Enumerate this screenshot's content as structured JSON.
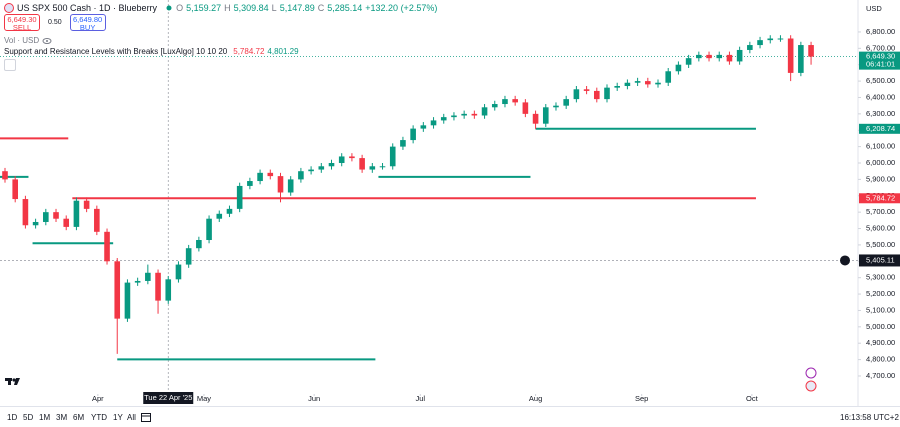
{
  "chart_data": {
    "type": "candlestick",
    "title": "US SPX 500 Cash · 1D · Blueberry",
    "header_labels": [
      "O",
      "H",
      "L",
      "C"
    ],
    "header_values": [
      "5,159.27",
      "5,309.84",
      "5,147.89",
      "5,285.14"
    ],
    "change": "+132.20 (+2.57%)",
    "sell_price": "6,649.30",
    "sell_label": "SELL",
    "spread": "0.50",
    "buy_price": "6,649.80",
    "buy_label": "BUY",
    "volume_label": "Vol · USD",
    "indicator": {
      "name": "Support and Resistance Levels with Breaks [LuxAlgo] 10 10 20",
      "values": [
        "5,784.72",
        "4,801.29"
      ]
    },
    "currency": "USD",
    "up_color": "#089981",
    "down_color": "#f23645",
    "open": [
      5950,
      5900,
      5780,
      5620,
      5640,
      5700,
      5660,
      5610,
      5770,
      5720,
      5580,
      5400,
      5050,
      5270,
      5280,
      5330,
      5160,
      5290,
      5380,
      5480,
      5530,
      5660,
      5690,
      5720,
      5860,
      5890,
      5940,
      5920,
      5820,
      5900,
      5950,
      5960,
      5980,
      6000,
      6040,
      6030,
      5960,
      5980,
      5980,
      6100,
      6140,
      6210,
      6230,
      6260,
      6280,
      6290,
      6300,
      6290,
      6340,
      6360,
      6390,
      6370,
      6300,
      6240,
      6340,
      6350,
      6390,
      6450,
      6440,
      6390,
      6460,
      6470,
      6490,
      6500,
      6480,
      6490,
      6560,
      6600,
      6640,
      6660,
      6640,
      6660,
      6620,
      6690,
      6720,
      6750,
      6760,
      6760,
      6550,
      6720
    ],
    "high": [
      5970,
      5920,
      5800,
      5660,
      5720,
      5720,
      5680,
      5790,
      5790,
      5740,
      5600,
      5420,
      5290,
      5300,
      5380,
      5350,
      5310,
      5400,
      5500,
      5550,
      5680,
      5710,
      5740,
      5880,
      5910,
      5960,
      5960,
      5940,
      5920,
      5970,
      5980,
      6000,
      6020,
      6060,
      6060,
      6050,
      6000,
      6000,
      6120,
      6160,
      6230,
      6250,
      6280,
      6300,
      6310,
      6320,
      6320,
      6360,
      6380,
      6410,
      6410,
      6390,
      6320,
      6360,
      6370,
      6410,
      6470,
      6470,
      6460,
      6480,
      6490,
      6510,
      6520,
      6520,
      6510,
      6580,
      6620,
      6660,
      6680,
      6680,
      6680,
      6680,
      6710,
      6740,
      6770,
      6780,
      6780,
      6780,
      6740,
      6740
    ],
    "low": [
      5880,
      5760,
      5600,
      5600,
      5620,
      5640,
      5590,
      5590,
      5700,
      5560,
      5380,
      4835,
      5030,
      5250,
      5260,
      5080,
      5140,
      5270,
      5360,
      5460,
      5510,
      5640,
      5670,
      5700,
      5840,
      5870,
      5900,
      5760,
      5800,
      5880,
      5930,
      5940,
      5960,
      5980,
      6010,
      5940,
      5940,
      5960,
      5960,
      6080,
      6120,
      6190,
      6210,
      6240,
      6260,
      6270,
      6270,
      6270,
      6320,
      6340,
      6350,
      6280,
      6208,
      6220,
      6320,
      6330,
      6370,
      6420,
      6370,
      6370,
      6440,
      6450,
      6470,
      6460,
      6460,
      6470,
      6540,
      6580,
      6620,
      6620,
      6620,
      6600,
      6600,
      6670,
      6700,
      6730,
      6740,
      6500,
      6530,
      6600
    ],
    "close": [
      5900,
      5780,
      5620,
      5640,
      5700,
      5660,
      5610,
      5770,
      5720,
      5580,
      5400,
      5050,
      5270,
      5280,
      5330,
      5160,
      5290,
      5380,
      5480,
      5530,
      5660,
      5690,
      5720,
      5860,
      5890,
      5940,
      5920,
      5820,
      5900,
      5950,
      5960,
      5980,
      6000,
      6040,
      6030,
      5960,
      5980,
      5980,
      6100,
      6140,
      6210,
      6230,
      6260,
      6280,
      6290,
      6300,
      6290,
      6340,
      6360,
      6390,
      6370,
      6300,
      6240,
      6340,
      6350,
      6390,
      6450,
      6440,
      6390,
      6460,
      6470,
      6490,
      6500,
      6480,
      6490,
      6560,
      6600,
      6640,
      6660,
      6640,
      6660,
      6620,
      6690,
      6720,
      6750,
      6760,
      6760,
      6550,
      6720,
      6649.3
    ],
    "levels": [
      {
        "value": 6150,
        "from": -0.5,
        "to": 6.2,
        "color": "#f23645"
      },
      {
        "value": 5915,
        "from": -0.5,
        "to": 2.3,
        "color": "#089981"
      },
      {
        "value": 5510,
        "from": 2.7,
        "to": 10.6,
        "color": "#089981"
      },
      {
        "value": 4801.29,
        "from": 11,
        "to": 36.3,
        "color": "#089981"
      },
      {
        "value": 5915,
        "from": 36.6,
        "to": 51.5,
        "color": "#089981"
      },
      {
        "value": 6208.74,
        "from": 52,
        "to": 73.6,
        "color": "#089981"
      },
      {
        "value": 5784.72,
        "from": 6.6,
        "to": 73.6,
        "color": "#f23645"
      }
    ],
    "xlim": [
      -0.49,
      83.6
    ],
    "xticks": [
      {
        "value": 9.1,
        "label": "Apr"
      },
      {
        "value": 19.5,
        "label": "May"
      },
      {
        "value": 30.3,
        "label": "Jun"
      },
      {
        "value": 40.7,
        "label": "Jul"
      },
      {
        "value": 52,
        "label": "Aug"
      },
      {
        "value": 62.4,
        "label": "Sep"
      },
      {
        "value": 73.2,
        "label": "Oct"
      }
    ],
    "ylim": [
      4590,
      6995
    ],
    "yticks": [
      {
        "value": 6800,
        "label": "6,800.00"
      },
      {
        "value": 6700,
        "label": "6,700.00"
      },
      {
        "value": 6600,
        "label": "6,600.00"
      },
      {
        "value": 6500,
        "label": "6,500.00"
      },
      {
        "value": 6400,
        "label": "6,400.00"
      },
      {
        "value": 6300,
        "label": "6,300.00"
      },
      {
        "value": 6200,
        "label": "6,200.00"
      },
      {
        "value": 6100,
        "label": "6,100.00"
      },
      {
        "value": 6000,
        "label": "6,000.00"
      },
      {
        "value": 5900,
        "label": "5,900.00"
      },
      {
        "value": 5800,
        "label": "5,800.00"
      },
      {
        "value": 5700,
        "label": "5,700.00"
      },
      {
        "value": 5600,
        "label": "5,600.00"
      },
      {
        "value": 5500,
        "label": "5,500.00"
      },
      {
        "value": 5400,
        "label": "5,400.00"
      },
      {
        "value": 5300,
        "label": "5,300.00"
      },
      {
        "value": 5200,
        "label": "5,200.00"
      },
      {
        "value": 5100,
        "label": "5,100.00"
      },
      {
        "value": 5000,
        "label": "5,000.00"
      },
      {
        "value": 4900,
        "label": "4,900.00"
      },
      {
        "value": 4800,
        "label": "4,800.00"
      },
      {
        "value": 4700,
        "label": "4,700.00"
      }
    ],
    "price_badges": [
      {
        "value": 6649.3,
        "label": "6,649.30",
        "sub": "06:41:01",
        "color": "#089981"
      },
      {
        "value": 6208.74,
        "label": "6,208.74",
        "color": "#089981"
      },
      {
        "value": 5784.72,
        "label": "5,784.72",
        "color": "#f23645"
      }
    ],
    "crosshair": {
      "price": 5405.11,
      "price_label": "5,405.11",
      "x": 16,
      "date_label": "Tue 22 Apr '25"
    }
  },
  "toolbar": {
    "ranges": [
      "1D",
      "5D",
      "1M",
      "3M",
      "6M",
      "YTD",
      "1Y",
      "All"
    ],
    "clock": "16:13:58 UTC+2"
  }
}
